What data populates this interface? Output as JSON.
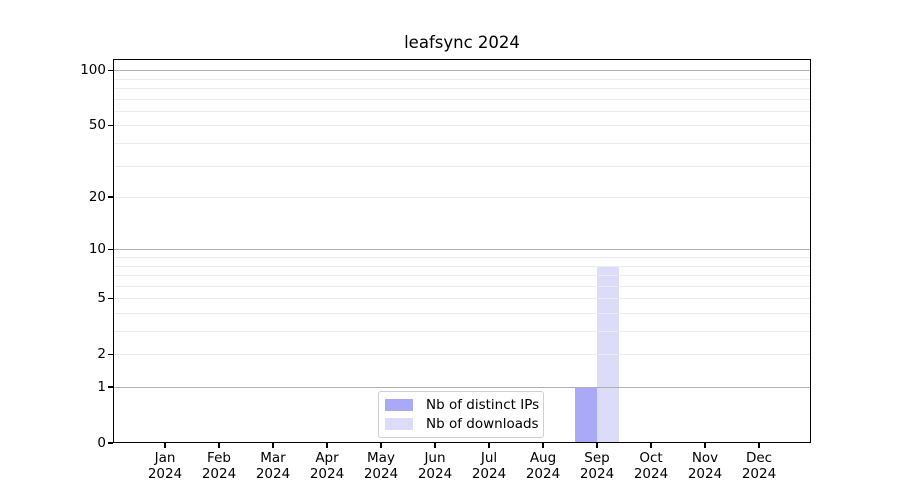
{
  "chart_data": {
    "type": "bar",
    "title": "leafsync 2024",
    "categories": [
      "Jan",
      "Feb",
      "Mar",
      "Apr",
      "May",
      "Jun",
      "Jul",
      "Aug",
      "Sep",
      "Oct",
      "Nov",
      "Dec"
    ],
    "x_year_label": "2024",
    "series": [
      {
        "name": "Nb of distinct IPs",
        "color": "#a9a9f8",
        "values": [
          0,
          0,
          0,
          0,
          0,
          0,
          0,
          0,
          1,
          0,
          0,
          0
        ]
      },
      {
        "name": "Nb of downloads",
        "color": "#dcdcf8",
        "values": [
          0,
          0,
          0,
          0,
          0,
          0,
          0,
          0,
          8,
          0,
          0,
          0
        ]
      }
    ],
    "y_scale": "log10(1+x)",
    "ylim": [
      0,
      115
    ],
    "y_axis_ticks": [
      100,
      50,
      20,
      10,
      5,
      2,
      1,
      0
    ],
    "y_major_gridlines": [
      1,
      10,
      100
    ],
    "y_minor_gridlines": [
      2,
      3,
      4,
      5,
      6,
      7,
      8,
      9,
      20,
      30,
      40,
      50,
      60,
      70,
      80,
      90
    ],
    "legend": {
      "position": "bottom-center",
      "entries": [
        "Nb of distinct IPs",
        "Nb of downloads"
      ]
    },
    "grid": true,
    "colors": {
      "major_grid": "#b0b0b0",
      "minor_grid": "#ebebeb",
      "axis": "#000000",
      "text": "#000000",
      "legend_border": "#cfcfcf",
      "background": "#ffffff"
    }
  }
}
